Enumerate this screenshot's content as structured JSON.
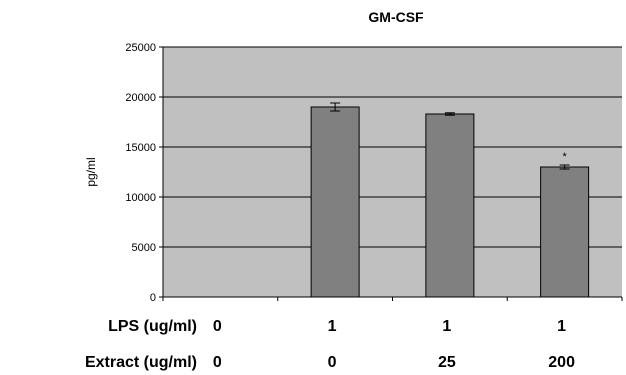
{
  "chart_data": {
    "type": "bar",
    "title": "GM-CSF",
    "ylabel": "pg/ml",
    "xlabel": "",
    "ylim": [
      0,
      25000
    ],
    "yticks": [
      0,
      5000,
      10000,
      15000,
      20000,
      25000
    ],
    "grid": true,
    "legend": "none",
    "categories": [
      "LPS 0 / Extract 0",
      "LPS 1 / Extract 0",
      "LPS 1 / Extract 25",
      "LPS 1 / Extract 200"
    ],
    "values": [
      0,
      19000,
      18300,
      13000
    ],
    "errors": [
      0,
      400,
      120,
      200
    ],
    "annotations": [
      "",
      "",
      "",
      "*"
    ],
    "table_rows": [
      {
        "label": "LPS (ug/ml)",
        "values": [
          "0",
          "1",
          "1",
          "1"
        ]
      },
      {
        "label": "Extract (ug/ml)",
        "values": [
          "0",
          "0",
          "25",
          "200"
        ]
      }
    ],
    "colors": {
      "plot_bg": "#c0c0c0",
      "bar": "#808080",
      "grid": "#000000"
    }
  }
}
